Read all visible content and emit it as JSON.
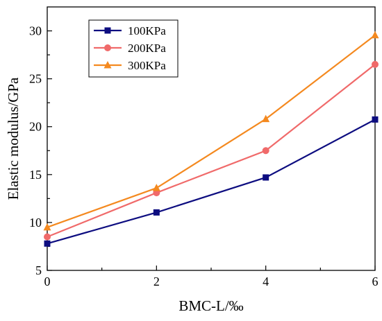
{
  "chart_data": {
    "type": "line",
    "xlabel": "BMC-L/‰",
    "ylabel": "Elastic modulus/GPa",
    "x": [
      0,
      2,
      4,
      6
    ],
    "xlim": [
      0,
      6
    ],
    "ylim": [
      5,
      32.5
    ],
    "xticks": [
      0,
      2,
      4,
      6
    ],
    "yticks": [
      5,
      10,
      15,
      20,
      25,
      30
    ],
    "grid": false,
    "legend_position": "top-left",
    "series": [
      {
        "name": "100KPa",
        "values": [
          7.8,
          11.05,
          14.7,
          20.75
        ],
        "color": "#0d0d80",
        "marker": "square"
      },
      {
        "name": "200KPa",
        "values": [
          8.5,
          13.1,
          17.5,
          26.5
        ],
        "color": "#f06a6a",
        "marker": "circle"
      },
      {
        "name": "300KPa",
        "values": [
          9.5,
          13.6,
          20.8,
          29.55
        ],
        "color": "#f4891f",
        "marker": "triangle"
      }
    ]
  }
}
